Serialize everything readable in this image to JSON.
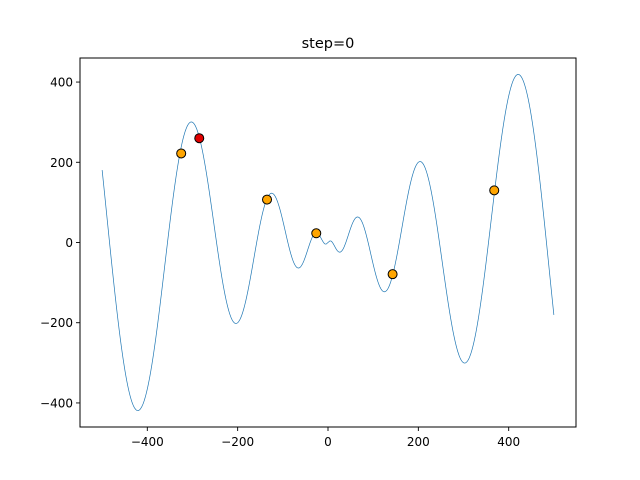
{
  "chart_data": {
    "type": "line",
    "title": "step=0",
    "xlabel": "",
    "ylabel": "",
    "xlim": [
      -549,
      549
    ],
    "ylim": [
      -460,
      460
    ],
    "x_ticks": [
      -400,
      -200,
      0,
      200,
      400
    ],
    "y_ticks": [
      -400,
      -200,
      0,
      200,
      400
    ],
    "grid": false,
    "legend": "none",
    "series": [
      {
        "function": "x*sin(sqrt(abs(x)))",
        "x_range": [
          -500,
          500
        ],
        "color": "#1f77b4"
      }
    ],
    "points": [
      {
        "x": -325,
        "y": 222,
        "color": "#ffa500"
      },
      {
        "x": -285,
        "y": 260,
        "color": "#e00000"
      },
      {
        "x": -135,
        "y": 107,
        "color": "#ffa500"
      },
      {
        "x": -26,
        "y": 23,
        "color": "#ffa500"
      },
      {
        "x": 143,
        "y": -79,
        "color": "#ffa500"
      },
      {
        "x": 368,
        "y": 130,
        "color": "#ffa500"
      }
    ]
  }
}
